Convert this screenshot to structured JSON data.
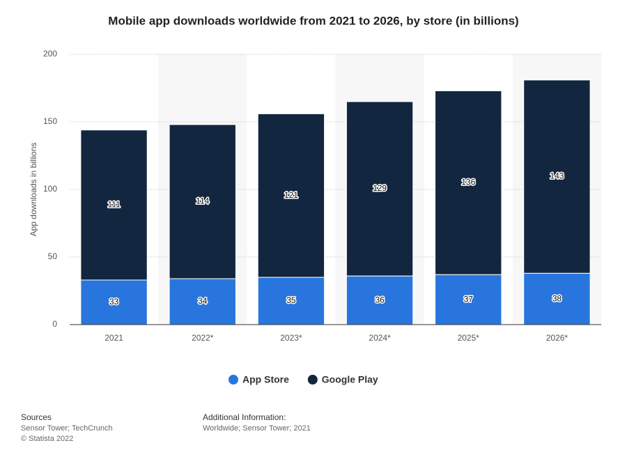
{
  "chart_data": {
    "type": "stacked-bar",
    "title": "Mobile app downloads worldwide from 2021 to 2026, by store (in billions)",
    "y_label": "App downloads in billions",
    "categories": [
      "2021",
      "2022*",
      "2023*",
      "2024*",
      "2025*",
      "2026*"
    ],
    "series": [
      {
        "name": "App Store",
        "color": "#2876dd",
        "values": [
          33,
          34,
          35,
          36,
          37,
          38
        ]
      },
      {
        "name": "Google Play",
        "color": "#12263f",
        "values": [
          111,
          114,
          121,
          129,
          136,
          143
        ]
      }
    ],
    "ylim": [
      0,
      200
    ],
    "yticks": [
      0,
      50,
      100,
      150,
      200
    ],
    "grid": true,
    "legend": "bottom"
  },
  "footer": {
    "sources_title": "Sources",
    "sources": "Sensor Tower; TechCrunch",
    "copyright": "© Statista 2022",
    "additional_title": "Additional Information:",
    "additional_info": "Worldwide; Sensor Tower; 2021"
  }
}
